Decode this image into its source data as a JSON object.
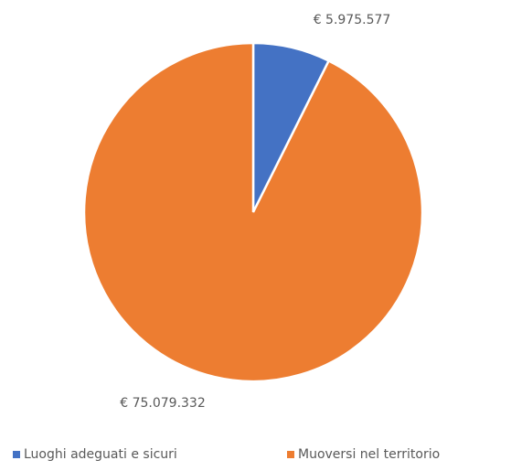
{
  "chart_data": {
    "type": "pie",
    "categories": [
      "Luoghi adeguati e sicuri",
      "Muoversi nel territorio"
    ],
    "values": [
      5975577,
      75079332
    ],
    "value_labels": [
      "€ 5.975.577",
      "€ 75.079.332"
    ],
    "colors": [
      "#4472c4",
      "#ed7d31"
    ],
    "legend": "bottom"
  }
}
